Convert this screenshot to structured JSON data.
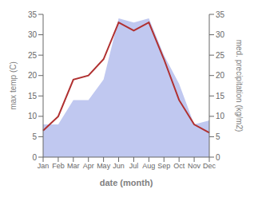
{
  "chart_data": {
    "type": "line",
    "categories": [
      "Jan",
      "Feb",
      "Mar",
      "Apr",
      "May",
      "Jun",
      "Jul",
      "Aug",
      "Sep",
      "Oct",
      "Nov",
      "Dec"
    ],
    "xlabel": "date (month)",
    "ylabel": "max temp (C)",
    "y2label": "med. precipitation (kg/m2)",
    "ylim": [
      0,
      35
    ],
    "yticks": [
      0,
      5,
      10,
      15,
      20,
      25,
      30,
      35
    ],
    "y2lim": [
      0,
      35
    ],
    "y2ticks": [
      0,
      5,
      10,
      15,
      20,
      25,
      30,
      35
    ],
    "grid": false,
    "series": [
      {
        "type": "area",
        "axis": "y2",
        "color": "#c0c8f0",
        "values": [
          8,
          8,
          14,
          14,
          19,
          34,
          33,
          34,
          25,
          18,
          8,
          9
        ]
      },
      {
        "type": "line",
        "color": "#b03030",
        "values": [
          6.5,
          10.0,
          19.0,
          20.0,
          24.0,
          33.0,
          31.0,
          33.0,
          24.0,
          14.0,
          8.0,
          6.0
        ]
      }
    ]
  }
}
